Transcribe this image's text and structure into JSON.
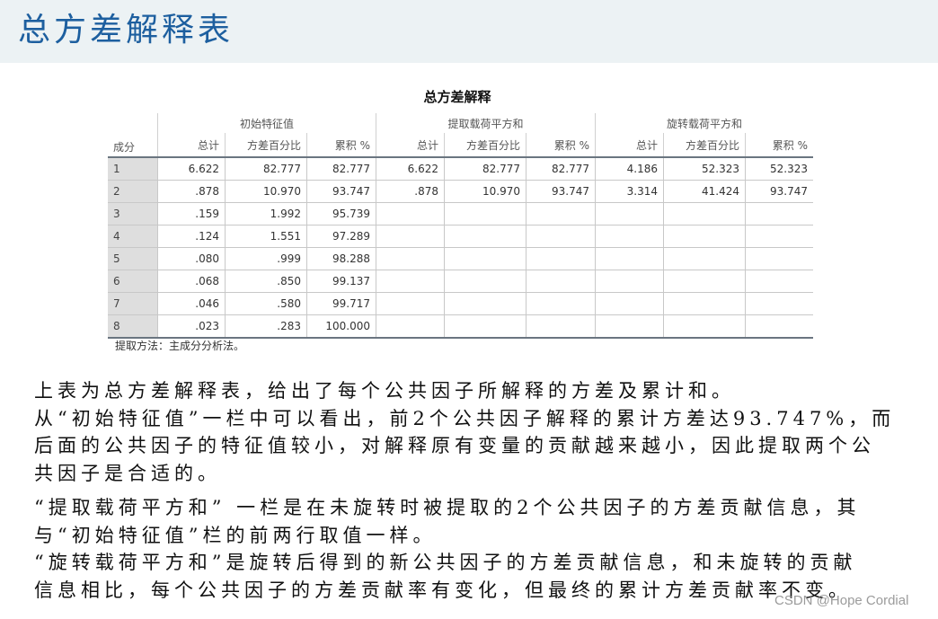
{
  "slide_title": "总方差解释表",
  "table": {
    "title": "总方差解释",
    "groups": [
      "初始特征值",
      "提取载荷平方和",
      "旋转载荷平方和"
    ],
    "row_header": "成分",
    "sub_headers": [
      "总计",
      "方差百分比",
      "累积 %"
    ],
    "rows": [
      [
        "1",
        "6.622",
        "82.777",
        "82.777",
        "6.622",
        "82.777",
        "82.777",
        "4.186",
        "52.323",
        "52.323"
      ],
      [
        "2",
        ".878",
        "10.970",
        "93.747",
        ".878",
        "10.970",
        "93.747",
        "3.314",
        "41.424",
        "93.747"
      ],
      [
        "3",
        ".159",
        "1.992",
        "95.739",
        "",
        "",
        "",
        "",
        "",
        ""
      ],
      [
        "4",
        ".124",
        "1.551",
        "97.289",
        "",
        "",
        "",
        "",
        "",
        ""
      ],
      [
        "5",
        ".080",
        ".999",
        "98.288",
        "",
        "",
        "",
        "",
        "",
        ""
      ],
      [
        "6",
        ".068",
        ".850",
        "99.137",
        "",
        "",
        "",
        "",
        "",
        ""
      ],
      [
        "7",
        ".046",
        ".580",
        "99.717",
        "",
        "",
        "",
        "",
        "",
        ""
      ],
      [
        "8",
        ".023",
        ".283",
        "100.000",
        "",
        "",
        "",
        "",
        "",
        ""
      ]
    ],
    "footnote": "提取方法：主成分分析法。"
  },
  "paragraph_lines": [
    "上表为总方差解释表，给出了每个公共因子所解释的方差及累计和。",
    "从“初始特征值”一栏中可以看出，前2个公共因子解释的累计方差达93.747%，而",
    "后面的公共因子的特征值较小，对解释原有变量的贡献越来越小，因此提取两个公",
    "共因子是合适的。",
    "“提取载荷平方和” 一栏是在未旋转时被提取的2个公共因子的方差贡献信息，其",
    "与“初始特征值”栏的前两行取值一样。",
    "“旋转载荷平方和”是旋转后得到的新公共因子的方差贡献信息，和未旋转的贡献",
    "信息相比，每个公共因子的方差贡献率有变化，但最终的累计方差贡献率不变。"
  ],
  "watermark": "CSDN @Hope Cordial",
  "colors": {
    "title": "#1d5f9f",
    "header_band": "#ecf2f4"
  }
}
